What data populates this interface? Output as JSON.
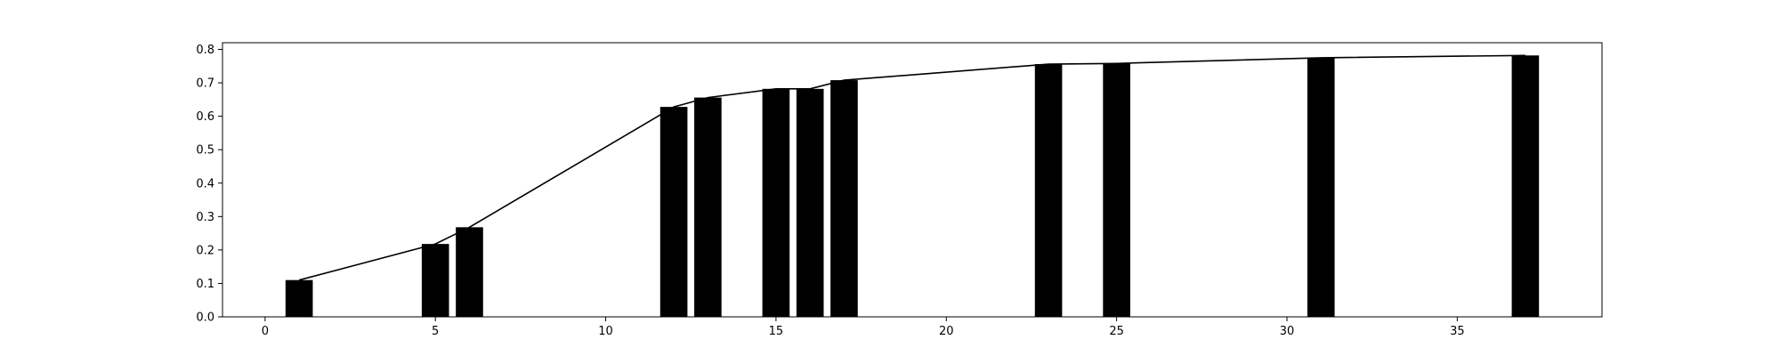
{
  "chart_data": {
    "type": "bar",
    "title": "",
    "xlabel": "",
    "ylabel": "",
    "xlim": [
      -1.25,
      39.25
    ],
    "ylim": [
      0.0,
      0.82
    ],
    "grid": false,
    "bar_width": 0.8,
    "x_ticks": [
      0,
      5,
      10,
      15,
      20,
      25,
      30,
      35
    ],
    "y_ticks": [
      0.0,
      0.1,
      0.2,
      0.3,
      0.4,
      0.5,
      0.6,
      0.7,
      0.8
    ],
    "series": [
      {
        "type": "bar",
        "color": "#000000",
        "x": [
          1,
          5,
          6,
          12,
          13,
          15,
          16,
          17,
          23,
          25,
          31,
          37
        ],
        "values": [
          0.11,
          0.218,
          0.268,
          0.628,
          0.656,
          0.682,
          0.682,
          0.708,
          0.756,
          0.758,
          0.775,
          0.782
        ]
      },
      {
        "type": "line",
        "color": "#000000",
        "x": [
          1,
          5,
          6,
          12,
          13,
          15,
          16,
          17,
          23,
          25,
          31,
          37
        ],
        "values": [
          0.11,
          0.218,
          0.268,
          0.628,
          0.656,
          0.682,
          0.682,
          0.708,
          0.756,
          0.758,
          0.775,
          0.782
        ]
      }
    ]
  }
}
